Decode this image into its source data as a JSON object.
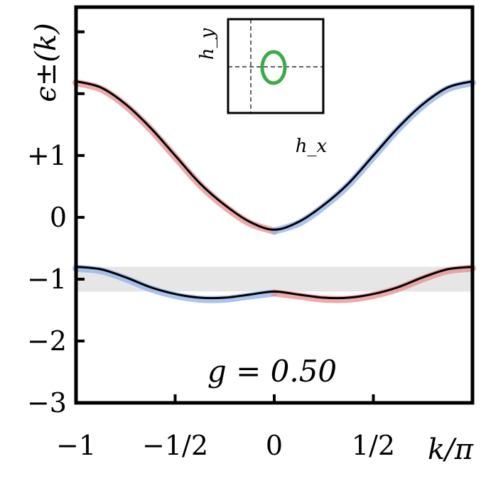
{
  "chart_data": {
    "type": "line",
    "ylabel": "ϵ±(k)",
    "xlabel": "k/π",
    "annotation": "g = 0.50",
    "xlim": [
      -1,
      1
    ],
    "ylim": [
      -3,
      3.4
    ],
    "x_ticks": [
      {
        "value": -1,
        "label": "−1"
      },
      {
        "value": -0.5,
        "label": "−1/2"
      },
      {
        "value": 0,
        "label": "0"
      },
      {
        "value": 0.5,
        "label": "1/2"
      },
      {
        "value": 1,
        "label": ""
      }
    ],
    "y_ticks": [
      {
        "value": -3,
        "label": "−3"
      },
      {
        "value": -2,
        "label": "−2"
      },
      {
        "value": -1,
        "label": "−1"
      },
      {
        "value": 0,
        "label": "0"
      },
      {
        "value": 1,
        "label": "+1"
      },
      {
        "value": 2,
        "label": ""
      },
      {
        "value": 3,
        "label": ""
      }
    ],
    "shaded_band": {
      "y": [
        -1.2,
        -0.8
      ],
      "color": "#e6e6e6"
    },
    "series": [
      {
        "band": "upper",
        "x": [
          -1,
          -0.875,
          -0.75,
          -0.625,
          -0.5,
          -0.375,
          -0.25,
          -0.125,
          0,
          0.125,
          0.25,
          0.375,
          0.5,
          0.625,
          0.75,
          0.875,
          1
        ],
        "y": [
          2.2,
          2.1,
          1.83,
          1.45,
          1.0,
          0.55,
          0.2,
          -0.07,
          -0.2,
          -0.07,
          0.2,
          0.55,
          1.0,
          1.45,
          1.83,
          2.1,
          2.2
        ]
      },
      {
        "band": "lower",
        "x": [
          -1,
          -0.875,
          -0.75,
          -0.625,
          -0.5,
          -0.375,
          -0.25,
          -0.125,
          0,
          0.125,
          0.25,
          0.375,
          0.5,
          0.625,
          0.75,
          0.875,
          1
        ],
        "y": [
          -0.8,
          -0.84,
          -0.97,
          -1.13,
          -1.24,
          -1.3,
          -1.3,
          -1.25,
          -1.2,
          -1.25,
          -1.3,
          -1.3,
          -1.24,
          -1.13,
          -0.97,
          -0.84,
          -0.8
        ]
      }
    ],
    "left_half_color": [
      "#e88d8d",
      "#8fb2ea"
    ],
    "right_half_color": [
      "#8fb2ea",
      "#e88d8d"
    ],
    "inset": {
      "xlabel": "h_x",
      "ylabel": "h_y",
      "curve": "ellipse",
      "curve_color": "#3aaa4a"
    }
  }
}
